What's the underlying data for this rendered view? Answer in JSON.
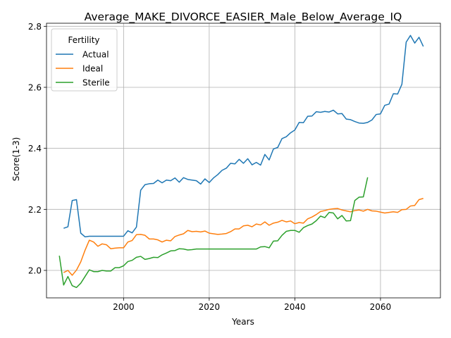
{
  "chart_data": {
    "type": "line",
    "title": "Average_MAKE_DIVORCE_EASIER_Male_Below_Average_IQ",
    "xlabel": "Years",
    "ylabel": "Score(1-3)",
    "xlim": [
      1982,
      2074
    ],
    "ylim": [
      1.91,
      2.81
    ],
    "xticks": [
      2000,
      2020,
      2040,
      2060
    ],
    "yticks": [
      2.0,
      2.2,
      2.4,
      2.6,
      2.8
    ],
    "xtick_labels": [
      "2000",
      "2020",
      "2040",
      "2060"
    ],
    "ytick_labels": [
      "2.0",
      "2.2",
      "2.4",
      "2.6",
      "2.8"
    ],
    "grid": true,
    "legend": {
      "title": "Fertility",
      "placement": "upper-left"
    },
    "series": [
      {
        "name": "Actual",
        "color": "#1f77b4",
        "x": [
          1986,
          1987,
          1988,
          1989,
          1990,
          1991,
          1992,
          1993,
          1994,
          1995,
          1996,
          1997,
          1998,
          1999,
          2000,
          2001,
          2002,
          2003,
          2004,
          2005,
          2006,
          2007,
          2008,
          2009,
          2010,
          2011,
          2012,
          2013,
          2014,
          2015,
          2016,
          2017,
          2018,
          2019,
          2020,
          2021,
          2022,
          2023,
          2024,
          2025,
          2026,
          2027,
          2028,
          2029,
          2030,
          2031,
          2032,
          2033,
          2034,
          2035,
          2036,
          2037,
          2038,
          2039,
          2040,
          2041,
          2042,
          2043,
          2044,
          2045,
          2046,
          2047,
          2048,
          2049,
          2050,
          2051,
          2052,
          2053,
          2054,
          2055,
          2056,
          2057,
          2058,
          2059,
          2060,
          2061,
          2062,
          2063,
          2064,
          2065,
          2066,
          2067,
          2068,
          2069,
          2070
        ],
        "values": [
          2.138,
          2.143,
          2.229,
          2.232,
          2.122,
          2.11,
          2.112,
          2.112,
          2.112,
          2.112,
          2.112,
          2.112,
          2.112,
          2.112,
          2.112,
          2.13,
          2.123,
          2.142,
          2.263,
          2.281,
          2.284,
          2.285,
          2.296,
          2.287,
          2.296,
          2.294,
          2.303,
          2.289,
          2.304,
          2.298,
          2.296,
          2.294,
          2.283,
          2.3,
          2.288,
          2.303,
          2.314,
          2.328,
          2.335,
          2.351,
          2.349,
          2.364,
          2.351,
          2.366,
          2.346,
          2.354,
          2.345,
          2.38,
          2.362,
          2.398,
          2.403,
          2.432,
          2.438,
          2.451,
          2.46,
          2.485,
          2.484,
          2.505,
          2.506,
          2.52,
          2.518,
          2.521,
          2.519,
          2.525,
          2.513,
          2.514,
          2.496,
          2.494,
          2.488,
          2.483,
          2.482,
          2.485,
          2.493,
          2.511,
          2.513,
          2.541,
          2.545,
          2.579,
          2.578,
          2.61,
          2.748,
          2.77,
          2.745,
          2.764,
          2.734
        ]
      },
      {
        "name": "Ideal",
        "color": "#ff7f0e",
        "x": [
          1986,
          1987,
          1988,
          1989,
          1990,
          1991,
          1992,
          1993,
          1994,
          1995,
          1996,
          1997,
          1998,
          1999,
          2000,
          2001,
          2002,
          2003,
          2004,
          2005,
          2006,
          2007,
          2008,
          2009,
          2010,
          2011,
          2012,
          2013,
          2014,
          2015,
          2016,
          2017,
          2018,
          2019,
          2020,
          2021,
          2022,
          2023,
          2024,
          2025,
          2026,
          2027,
          2028,
          2029,
          2030,
          2031,
          2032,
          2033,
          2034,
          2035,
          2036,
          2037,
          2038,
          2039,
          2040,
          2041,
          2042,
          2043,
          2044,
          2045,
          2046,
          2047,
          2048,
          2049,
          2050,
          2051,
          2052,
          2053,
          2054,
          2055,
          2056,
          2057,
          2058,
          2059,
          2060,
          2061,
          2062,
          2063,
          2064,
          2065,
          2066,
          2067,
          2068,
          2069,
          2070
        ],
        "values": [
          1.993,
          2.0,
          1.984,
          2.001,
          2.028,
          2.066,
          2.099,
          2.093,
          2.079,
          2.087,
          2.084,
          2.071,
          2.073,
          2.074,
          2.074,
          2.093,
          2.098,
          2.117,
          2.118,
          2.115,
          2.103,
          2.103,
          2.1,
          2.093,
          2.099,
          2.097,
          2.111,
          2.116,
          2.12,
          2.131,
          2.127,
          2.128,
          2.126,
          2.129,
          2.122,
          2.12,
          2.118,
          2.119,
          2.121,
          2.127,
          2.136,
          2.136,
          2.146,
          2.148,
          2.143,
          2.152,
          2.149,
          2.159,
          2.148,
          2.155,
          2.158,
          2.164,
          2.159,
          2.162,
          2.153,
          2.157,
          2.155,
          2.169,
          2.175,
          2.183,
          2.193,
          2.196,
          2.2,
          2.202,
          2.203,
          2.198,
          2.195,
          2.192,
          2.196,
          2.198,
          2.194,
          2.2,
          2.195,
          2.194,
          2.191,
          2.188,
          2.19,
          2.192,
          2.19,
          2.199,
          2.2,
          2.211,
          2.213,
          2.232,
          2.236
        ]
      },
      {
        "name": "Sterile",
        "color": "#2ca02c",
        "x": [
          1985,
          1986,
          1987,
          1988,
          1989,
          1990,
          1991,
          1992,
          1993,
          1994,
          1995,
          1996,
          1997,
          1998,
          1999,
          2000,
          2001,
          2002,
          2003,
          2004,
          2005,
          2006,
          2007,
          2008,
          2009,
          2010,
          2011,
          2012,
          2013,
          2014,
          2015,
          2016,
          2017,
          2018,
          2019,
          2020,
          2021,
          2022,
          2023,
          2024,
          2025,
          2026,
          2027,
          2028,
          2029,
          2030,
          2031,
          2032,
          2033,
          2034,
          2035,
          2036,
          2037,
          2038,
          2039,
          2040,
          2041,
          2042,
          2043,
          2044,
          2045,
          2046,
          2047,
          2048,
          2049,
          2050,
          2051,
          2052,
          2053,
          2054,
          2055,
          2056,
          2057
        ],
        "values": [
          2.048,
          1.952,
          1.98,
          1.95,
          1.944,
          1.958,
          1.98,
          2.002,
          1.996,
          1.996,
          2.0,
          1.998,
          1.998,
          2.009,
          2.009,
          2.015,
          2.029,
          2.033,
          2.043,
          2.046,
          2.036,
          2.039,
          2.043,
          2.042,
          2.051,
          2.057,
          2.064,
          2.065,
          2.071,
          2.07,
          2.067,
          2.068,
          2.07,
          2.07,
          2.07,
          2.07,
          2.07,
          2.07,
          2.07,
          2.07,
          2.07,
          2.07,
          2.07,
          2.07,
          2.07,
          2.07,
          2.07,
          2.077,
          2.078,
          2.074,
          2.096,
          2.097,
          2.115,
          2.128,
          2.131,
          2.131,
          2.125,
          2.14,
          2.147,
          2.152,
          2.163,
          2.178,
          2.173,
          2.19,
          2.188,
          2.169,
          2.18,
          2.162,
          2.163,
          2.229,
          2.24,
          2.241,
          2.305
        ]
      }
    ]
  }
}
